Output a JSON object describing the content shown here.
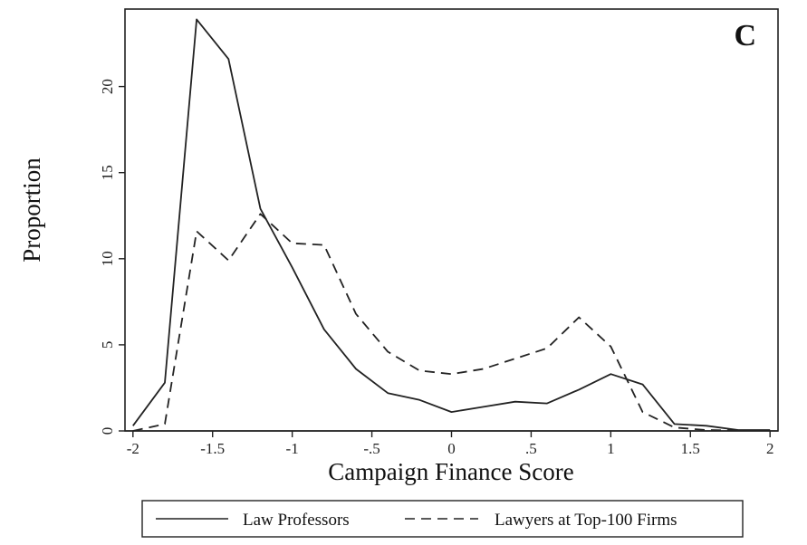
{
  "chart_data": {
    "type": "line",
    "panel_label": "C",
    "xlabel": "Campaign Finance Score",
    "ylabel": "Proportion",
    "xlim": [
      -2.05,
      2.05
    ],
    "ylim": [
      0,
      24.5
    ],
    "x_ticks": [
      {
        "value": -2,
        "label": "-2"
      },
      {
        "value": -1.5,
        "label": "-1.5"
      },
      {
        "value": -1,
        "label": "-1"
      },
      {
        "value": -0.5,
        "label": "-.5"
      },
      {
        "value": 0,
        "label": "0"
      },
      {
        "value": 0.5,
        "label": ".5"
      },
      {
        "value": 1,
        "label": "1"
      },
      {
        "value": 1.5,
        "label": "1.5"
      },
      {
        "value": 2,
        "label": "2"
      }
    ],
    "y_ticks": [
      {
        "value": 0,
        "label": "0"
      },
      {
        "value": 5,
        "label": "5"
      },
      {
        "value": 10,
        "label": "10"
      },
      {
        "value": 15,
        "label": "15"
      },
      {
        "value": 20,
        "label": "20"
      }
    ],
    "grid": false,
    "legend_position": "bottom",
    "series": [
      {
        "name": "Law Professors",
        "style": "solid",
        "x": [
          -2,
          -1.8,
          -1.6,
          -1.4,
          -1.2,
          -1.0,
          -0.8,
          -0.6,
          -0.4,
          -0.2,
          0.0,
          0.2,
          0.4,
          0.6,
          0.8,
          1.0,
          1.2,
          1.4,
          1.6,
          1.8,
          2.0
        ],
        "y": [
          0.3,
          2.8,
          23.9,
          21.6,
          12.9,
          9.5,
          5.9,
          3.6,
          2.2,
          1.8,
          1.1,
          1.4,
          1.7,
          1.6,
          2.4,
          3.3,
          2.7,
          0.4,
          0.3,
          0.05,
          0.05
        ]
      },
      {
        "name": "Lawyers at Top-100 Firms",
        "style": "dashed",
        "x": [
          -2,
          -1.8,
          -1.6,
          -1.4,
          -1.2,
          -1.0,
          -0.8,
          -0.6,
          -0.4,
          -0.2,
          0.0,
          0.2,
          0.4,
          0.6,
          0.8,
          1.0,
          1.2,
          1.4,
          1.6,
          1.8,
          2.0
        ],
        "y": [
          0.0,
          0.4,
          11.6,
          9.9,
          12.6,
          10.9,
          10.8,
          6.8,
          4.6,
          3.5,
          3.3,
          3.6,
          4.2,
          4.8,
          6.6,
          4.9,
          1.1,
          0.2,
          0.05,
          0.02,
          0.02
        ]
      }
    ]
  }
}
